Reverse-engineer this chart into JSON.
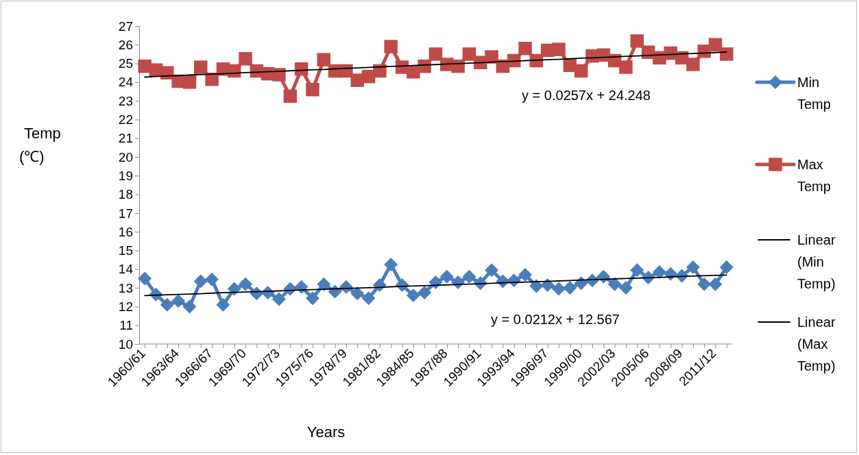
{
  "chart_data": {
    "type": "line",
    "xlabel": "Years",
    "ylabel": "Temp (℃)",
    "ylim": [
      10,
      27
    ],
    "yticks": [
      10,
      11,
      12,
      13,
      14,
      15,
      16,
      17,
      18,
      19,
      20,
      21,
      22,
      23,
      24,
      25,
      26,
      27
    ],
    "grid": false,
    "legend": "right",
    "categories": [
      "1960/61",
      null,
      null,
      "1963/64",
      null,
      null,
      "1966/67",
      null,
      null,
      "1969/70",
      null,
      null,
      "1972/73",
      null,
      null,
      "1975/76",
      null,
      null,
      "1978/79",
      null,
      null,
      "1981/82",
      null,
      null,
      "1984/85",
      null,
      null,
      "1987/88",
      null,
      null,
      "1990/91",
      null,
      null,
      "1993/94",
      null,
      null,
      "1996/97",
      null,
      null,
      "1999/00",
      null,
      null,
      "2002/03",
      null,
      null,
      "2005/06",
      null,
      null,
      "2008/09",
      null,
      null,
      "2011/12",
      null
    ],
    "series": [
      {
        "name": "Min Temp",
        "color": "#4a7ebb",
        "marker": "diamond",
        "values": [
          13.5,
          12.65,
          12.1,
          12.3,
          12.0,
          13.35,
          13.45,
          12.1,
          12.95,
          13.2,
          12.7,
          12.75,
          12.4,
          12.95,
          13.05,
          12.45,
          13.2,
          12.8,
          13.05,
          12.7,
          12.45,
          13.15,
          14.25,
          13.15,
          12.6,
          12.75,
          13.3,
          13.6,
          13.3,
          13.6,
          13.25,
          13.95,
          13.35,
          13.4,
          13.7,
          13.1,
          13.15,
          12.95,
          13.0,
          13.25,
          13.4,
          13.6,
          13.2,
          13.0,
          13.95,
          13.55,
          13.85,
          13.75,
          13.65,
          14.1,
          13.2,
          13.2,
          14.1
        ]
      },
      {
        "name": "Max Temp",
        "color": "#be4b48",
        "marker": "square",
        "values": [
          24.85,
          24.65,
          24.5,
          24.05,
          24.0,
          24.8,
          24.15,
          24.7,
          24.6,
          25.25,
          24.6,
          24.45,
          24.4,
          23.25,
          24.7,
          23.6,
          25.2,
          24.6,
          24.6,
          24.1,
          24.3,
          24.6,
          25.9,
          24.8,
          24.55,
          24.85,
          25.5,
          24.95,
          24.85,
          25.5,
          25.05,
          25.35,
          24.85,
          25.15,
          25.8,
          25.15,
          25.7,
          25.75,
          24.9,
          24.6,
          25.4,
          25.45,
          25.15,
          24.8,
          26.2,
          25.6,
          25.3,
          25.55,
          25.3,
          24.95,
          25.65,
          26.0,
          25.5
        ]
      },
      {
        "name": "Linear (Min Temp)",
        "color": "#000000",
        "marker": "none",
        "values": [
          12.59,
          12.61,
          12.63,
          12.65,
          12.67,
          12.69,
          12.72,
          12.74,
          12.76,
          12.78,
          12.8,
          12.82,
          12.84,
          12.86,
          12.89,
          12.91,
          12.93,
          12.95,
          12.97,
          12.99,
          13.01,
          13.03,
          13.06,
          13.08,
          13.1,
          13.12,
          13.14,
          13.16,
          13.18,
          13.2,
          13.22,
          13.25,
          13.27,
          13.29,
          13.31,
          13.33,
          13.35,
          13.37,
          13.39,
          13.42,
          13.44,
          13.46,
          13.48,
          13.5,
          13.52,
          13.54,
          13.56,
          13.59,
          13.61,
          13.63,
          13.65,
          13.67,
          13.69
        ]
      },
      {
        "name": "Linear (Max Temp)",
        "color": "#000000",
        "marker": "none",
        "values": [
          24.27,
          24.3,
          24.33,
          24.35,
          24.38,
          24.4,
          24.43,
          24.45,
          24.48,
          24.51,
          24.53,
          24.56,
          24.58,
          24.61,
          24.63,
          24.66,
          24.68,
          24.71,
          24.74,
          24.76,
          24.79,
          24.81,
          24.84,
          24.86,
          24.89,
          24.92,
          24.94,
          24.97,
          24.99,
          25.02,
          25.04,
          25.07,
          25.1,
          25.12,
          25.15,
          25.17,
          25.2,
          25.22,
          25.25,
          25.28,
          25.3,
          25.33,
          25.35,
          25.38,
          25.4,
          25.43,
          25.46,
          25.48,
          25.51,
          25.53,
          25.56,
          25.58,
          25.61
        ]
      }
    ],
    "annotations": [
      "y = 0.0257x + 24.248",
      "y = 0.0212x + 12.567"
    ]
  }
}
